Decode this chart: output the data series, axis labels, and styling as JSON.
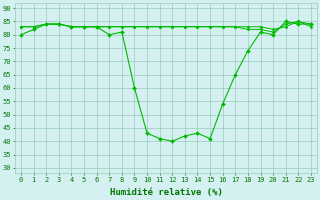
{
  "x": [
    0,
    1,
    2,
    3,
    4,
    5,
    6,
    7,
    8,
    9,
    10,
    11,
    12,
    13,
    14,
    15,
    16,
    17,
    18,
    19,
    20,
    21,
    22,
    23
  ],
  "y_main": [
    80,
    82,
    84,
    84,
    83,
    83,
    83,
    80,
    81,
    60,
    43,
    41,
    40,
    42,
    43,
    41,
    54,
    65,
    74,
    81,
    80,
    85,
    84,
    84
  ],
  "y_line2": [
    83,
    83,
    84,
    84,
    83,
    83,
    83,
    83,
    83,
    83,
    83,
    83,
    83,
    83,
    83,
    83,
    83,
    83,
    83,
    83,
    82,
    83,
    85,
    83
  ],
  "y_line3": [
    83,
    83,
    84,
    84,
    83,
    83,
    83,
    83,
    83,
    83,
    83,
    83,
    83,
    83,
    83,
    83,
    83,
    83,
    82,
    82,
    81,
    84,
    85,
    84
  ],
  "line_color": "#00bb00",
  "bg_color": "#d4f0f0",
  "grid_color": "#99ccbb",
  "xlabel": "Humidité relative (%)",
  "xlabel_color": "#007700",
  "ylim": [
    28,
    92
  ],
  "yticks": [
    30,
    35,
    40,
    45,
    50,
    55,
    60,
    65,
    70,
    75,
    80,
    85,
    90
  ],
  "xticks": [
    0,
    1,
    2,
    3,
    4,
    5,
    6,
    7,
    8,
    9,
    10,
    11,
    12,
    13,
    14,
    15,
    16,
    17,
    18,
    19,
    20,
    21,
    22,
    23
  ],
  "tick_color": "#007700",
  "tick_fontsize": 5.0,
  "xlabel_fontsize": 6.5
}
